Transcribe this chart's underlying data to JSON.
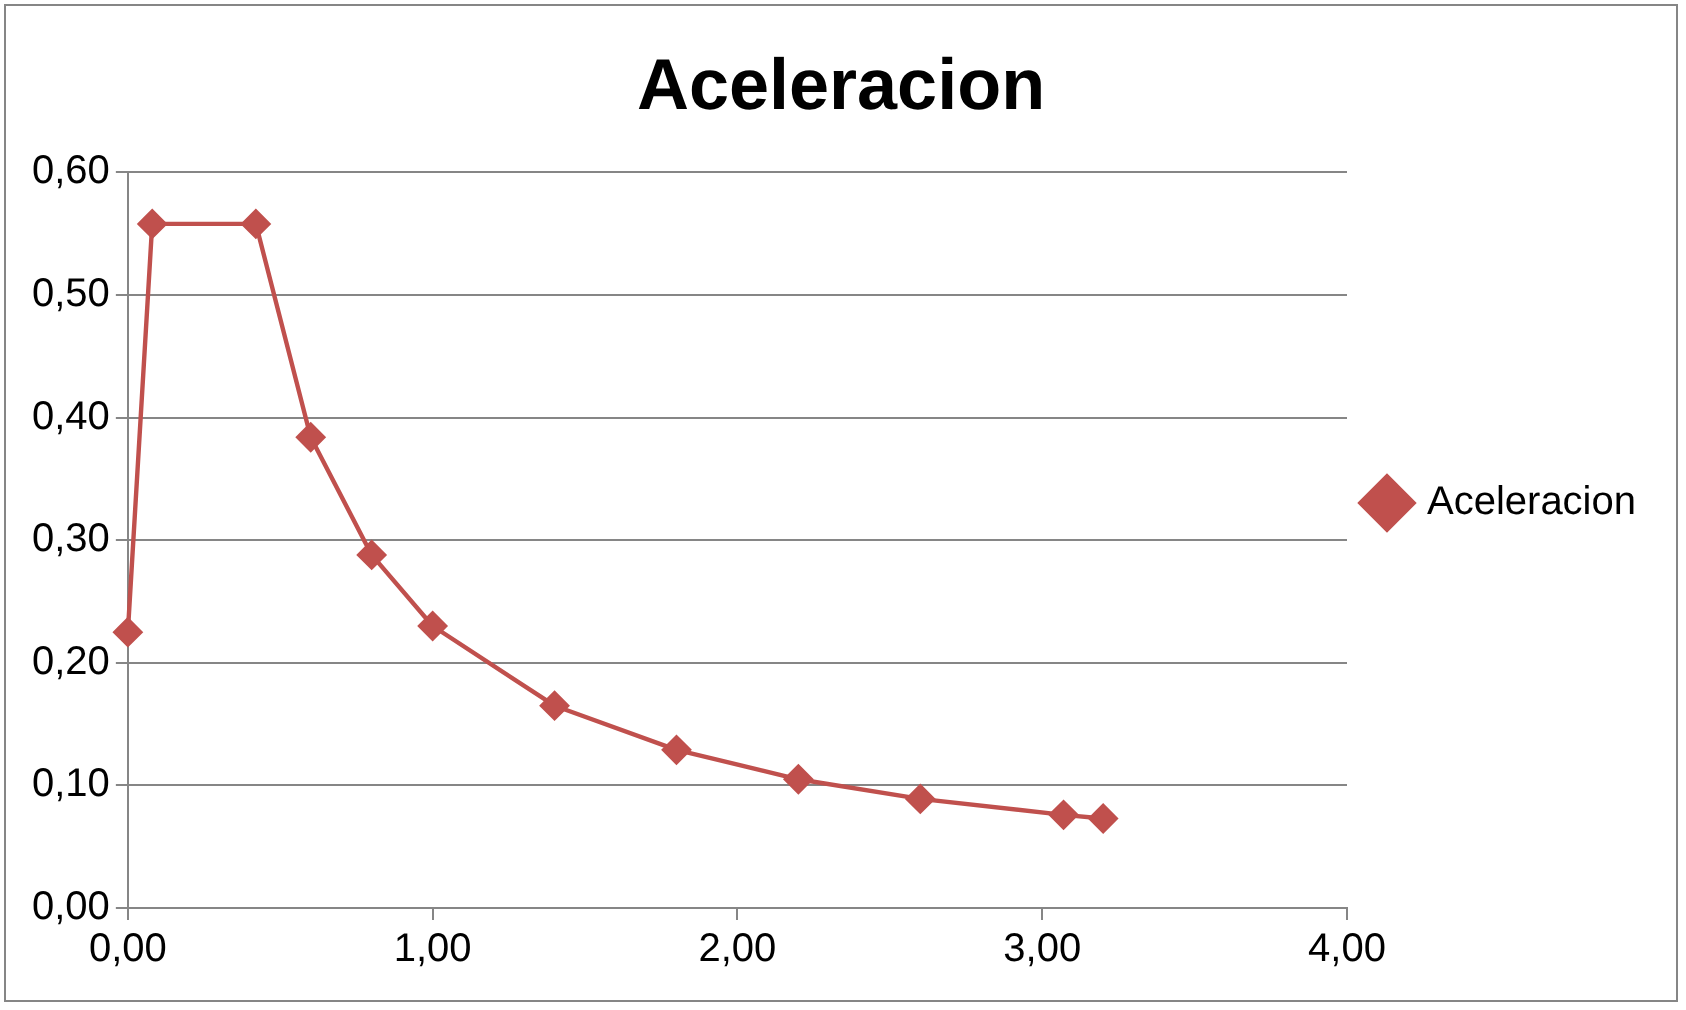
{
  "chart_data": {
    "type": "line",
    "title": "Aceleracion",
    "x": [
      0,
      0.08,
      0.42,
      0.6,
      0.8,
      1.0,
      1.4,
      1.8,
      2.2,
      2.6,
      3.07,
      3.2
    ],
    "series": [
      {
        "name": "Aceleracion",
        "color": "#c0504d",
        "values": [
          0.225,
          0.558,
          0.558,
          0.384,
          0.288,
          0.23,
          0.165,
          0.129,
          0.105,
          0.089,
          0.076,
          0.073
        ]
      }
    ],
    "xlim": [
      0,
      4
    ],
    "xticks": [
      {
        "value": 0,
        "label": "0,00"
      },
      {
        "value": 1,
        "label": "1,00"
      },
      {
        "value": 2,
        "label": "2,00"
      },
      {
        "value": 3,
        "label": "3,00"
      },
      {
        "value": 4,
        "label": "4,00"
      }
    ],
    "ylim": [
      0,
      0.6
    ],
    "yticks": [
      {
        "value": 0,
        "label": "0,00"
      },
      {
        "value": 0.1,
        "label": "0,10"
      },
      {
        "value": 0.2,
        "label": "0,20"
      },
      {
        "value": 0.3,
        "label": "0,30"
      },
      {
        "value": 0.4,
        "label": "0,40"
      },
      {
        "value": 0.5,
        "label": "0,50"
      },
      {
        "value": 0.6,
        "label": "0,60"
      }
    ],
    "grid": "y",
    "legend": "right",
    "marker": "diamond",
    "line_style": "solid"
  }
}
